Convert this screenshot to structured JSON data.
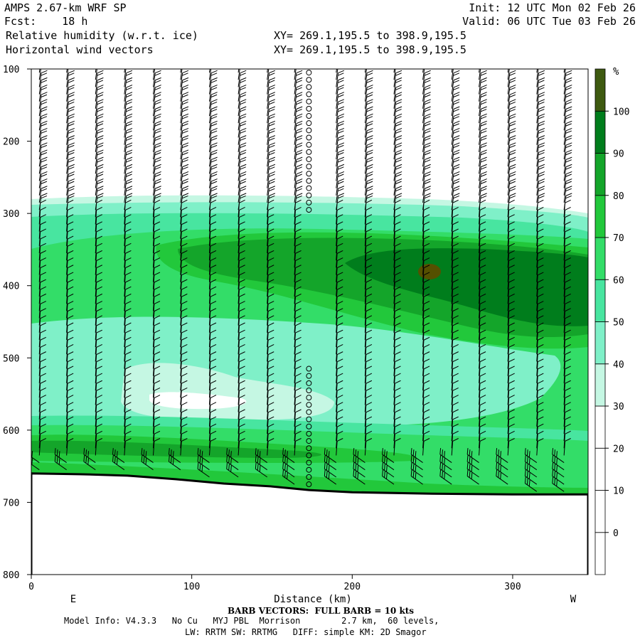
{
  "header": {
    "model": "AMPS 2.67-km WRF SP",
    "fcst": "Fcst:    18 h",
    "init": "Init: 12 UTC Mon 02 Feb 26",
    "valid": "Valid: 06 UTC Tue 03 Feb 26",
    "field1": "Relative humidity (w.r.t. ice)",
    "field2": "Horizontal wind vectors",
    "xy1": "XY= 269.1,195.5 to 398.9,195.5",
    "xy2": "XY= 269.1,195.5 to 398.9,195.5"
  },
  "footer": {
    "barb": "BARB VECTORS:  FULL BARB = 10 kts",
    "model_info": "Model Info: V4.3.3   No Cu   MYJ PBL  Morrison        2.7 km,  60 levels,",
    "physics": "LW: RRTM SW: RRTMG   DIFF: simple KM: 2D Smagor"
  },
  "chart_data": {
    "type": "heatmap",
    "xlabel": "Distance (km)",
    "x_left_label": "E",
    "x_right_label": "W",
    "xlim": [
      0,
      347
    ],
    "ylim": [
      800,
      100
    ],
    "x_ticks": [
      0,
      100,
      200,
      300
    ],
    "y_ticks": [
      100,
      200,
      300,
      400,
      500,
      600,
      700,
      800
    ],
    "colorbar": {
      "unit": "%",
      "levels": [
        0,
        10,
        20,
        30,
        40,
        50,
        60,
        70,
        80,
        90,
        100
      ],
      "colors": [
        "#ffffff",
        "#ffffff",
        "#ffffff",
        "#ffffff",
        "#c5f7e3",
        "#7ff0c8",
        "#48e5a0",
        "#33dd68",
        "#22c83b",
        "#14a52a",
        "#007d1c",
        "#3e5a10"
      ]
    },
    "terrain": [
      [
        0,
        660
      ],
      [
        30,
        661
      ],
      [
        60,
        663
      ],
      [
        90,
        668
      ],
      [
        120,
        674
      ],
      [
        150,
        678
      ],
      [
        173,
        683
      ],
      [
        200,
        686
      ],
      [
        250,
        688
      ],
      [
        300,
        689
      ],
      [
        347,
        689
      ]
    ],
    "calm_column_km": 173,
    "barb_columns_km": [
      5,
      22,
      40,
      58,
      76,
      93,
      111,
      129,
      147,
      164,
      173,
      190,
      208,
      226,
      244,
      262,
      279,
      297,
      315,
      332
    ]
  }
}
